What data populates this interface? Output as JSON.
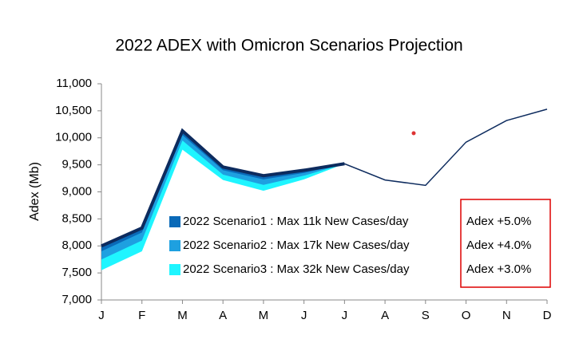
{
  "chart_data": {
    "type": "line",
    "title": "2022 ADEX with Omicron Scenarios Projection",
    "y_label": "Adex (Mb)",
    "categories": [
      "J",
      "F",
      "M",
      "A",
      "M",
      "J",
      "J",
      "A",
      "S",
      "O",
      "N",
      "D"
    ],
    "ylim": [
      7000,
      11000
    ],
    "yticks": [
      {
        "value": 7000,
        "label": "7,000"
      },
      {
        "value": 7500,
        "label": "7,500"
      },
      {
        "value": 8000,
        "label": "8,000"
      },
      {
        "value": 8500,
        "label": "8,500"
      },
      {
        "value": 9000,
        "label": "9,000"
      },
      {
        "value": 9500,
        "label": "9,500"
      },
      {
        "value": 10000,
        "label": "10,000"
      },
      {
        "value": 10500,
        "label": "10,500"
      },
      {
        "value": 11000,
        "label": "11,000"
      }
    ],
    "grid": false,
    "line": {
      "color": "#0d2b5e",
      "values": [
        8000,
        8330,
        10130,
        9460,
        9300,
        9400,
        9520,
        9220,
        9120,
        9920,
        10320,
        10530
      ]
    },
    "series": [
      {
        "name": "2022 Scenario1 : Max 11k New Cases/day",
        "note": "Adex +5.0%",
        "color": "#0a6ab8",
        "values": [
          7900,
          8250,
          10050,
          9400,
          9230,
          9350,
          9520,
          null,
          null,
          null,
          null,
          null
        ]
      },
      {
        "name": "2022 Scenario2 : Max 17k New Cases/day",
        "note": "Adex +4.0%",
        "color": "#1ea0e0",
        "values": [
          7750,
          8100,
          9950,
          9320,
          9130,
          9300,
          9520,
          null,
          null,
          null,
          null,
          null
        ]
      },
      {
        "name": "2022 Scenario3 : Max 32k New Cases/day",
        "note": "Adex +3.0%",
        "color": "#1ff5ff",
        "values": [
          7550,
          7900,
          9780,
          9220,
          9020,
          9230,
          9520,
          null,
          null,
          null,
          null,
          null
        ]
      }
    ]
  }
}
